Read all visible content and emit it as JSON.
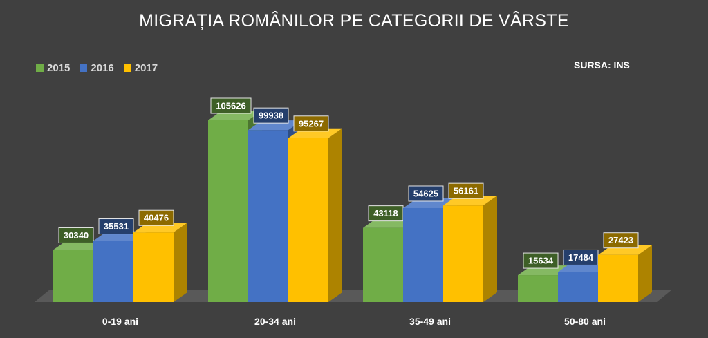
{
  "chart_data": {
    "type": "bar",
    "title": "MIGRAȚIA ROMÂNILOR PE CATEGORII DE VÂRSTE",
    "source": "SURSA: INS",
    "categories": [
      "0-19 ani",
      "20-34 ani",
      "35-49 ani",
      "50-80 ani"
    ],
    "series": [
      {
        "name": "2015",
        "color": "#70ad47",
        "values": [
          30340,
          105626,
          43118,
          15634
        ]
      },
      {
        "name": "2016",
        "color": "#4472c4",
        "values": [
          35531,
          99938,
          54625,
          17484
        ]
      },
      {
        "name": "2017",
        "color": "#ffc000",
        "values": [
          40476,
          95267,
          56161,
          27423
        ]
      }
    ],
    "ylim": [
      0,
      105626
    ],
    "grid": false,
    "legend_position": "top-left",
    "style": "3d-clustered-column"
  }
}
